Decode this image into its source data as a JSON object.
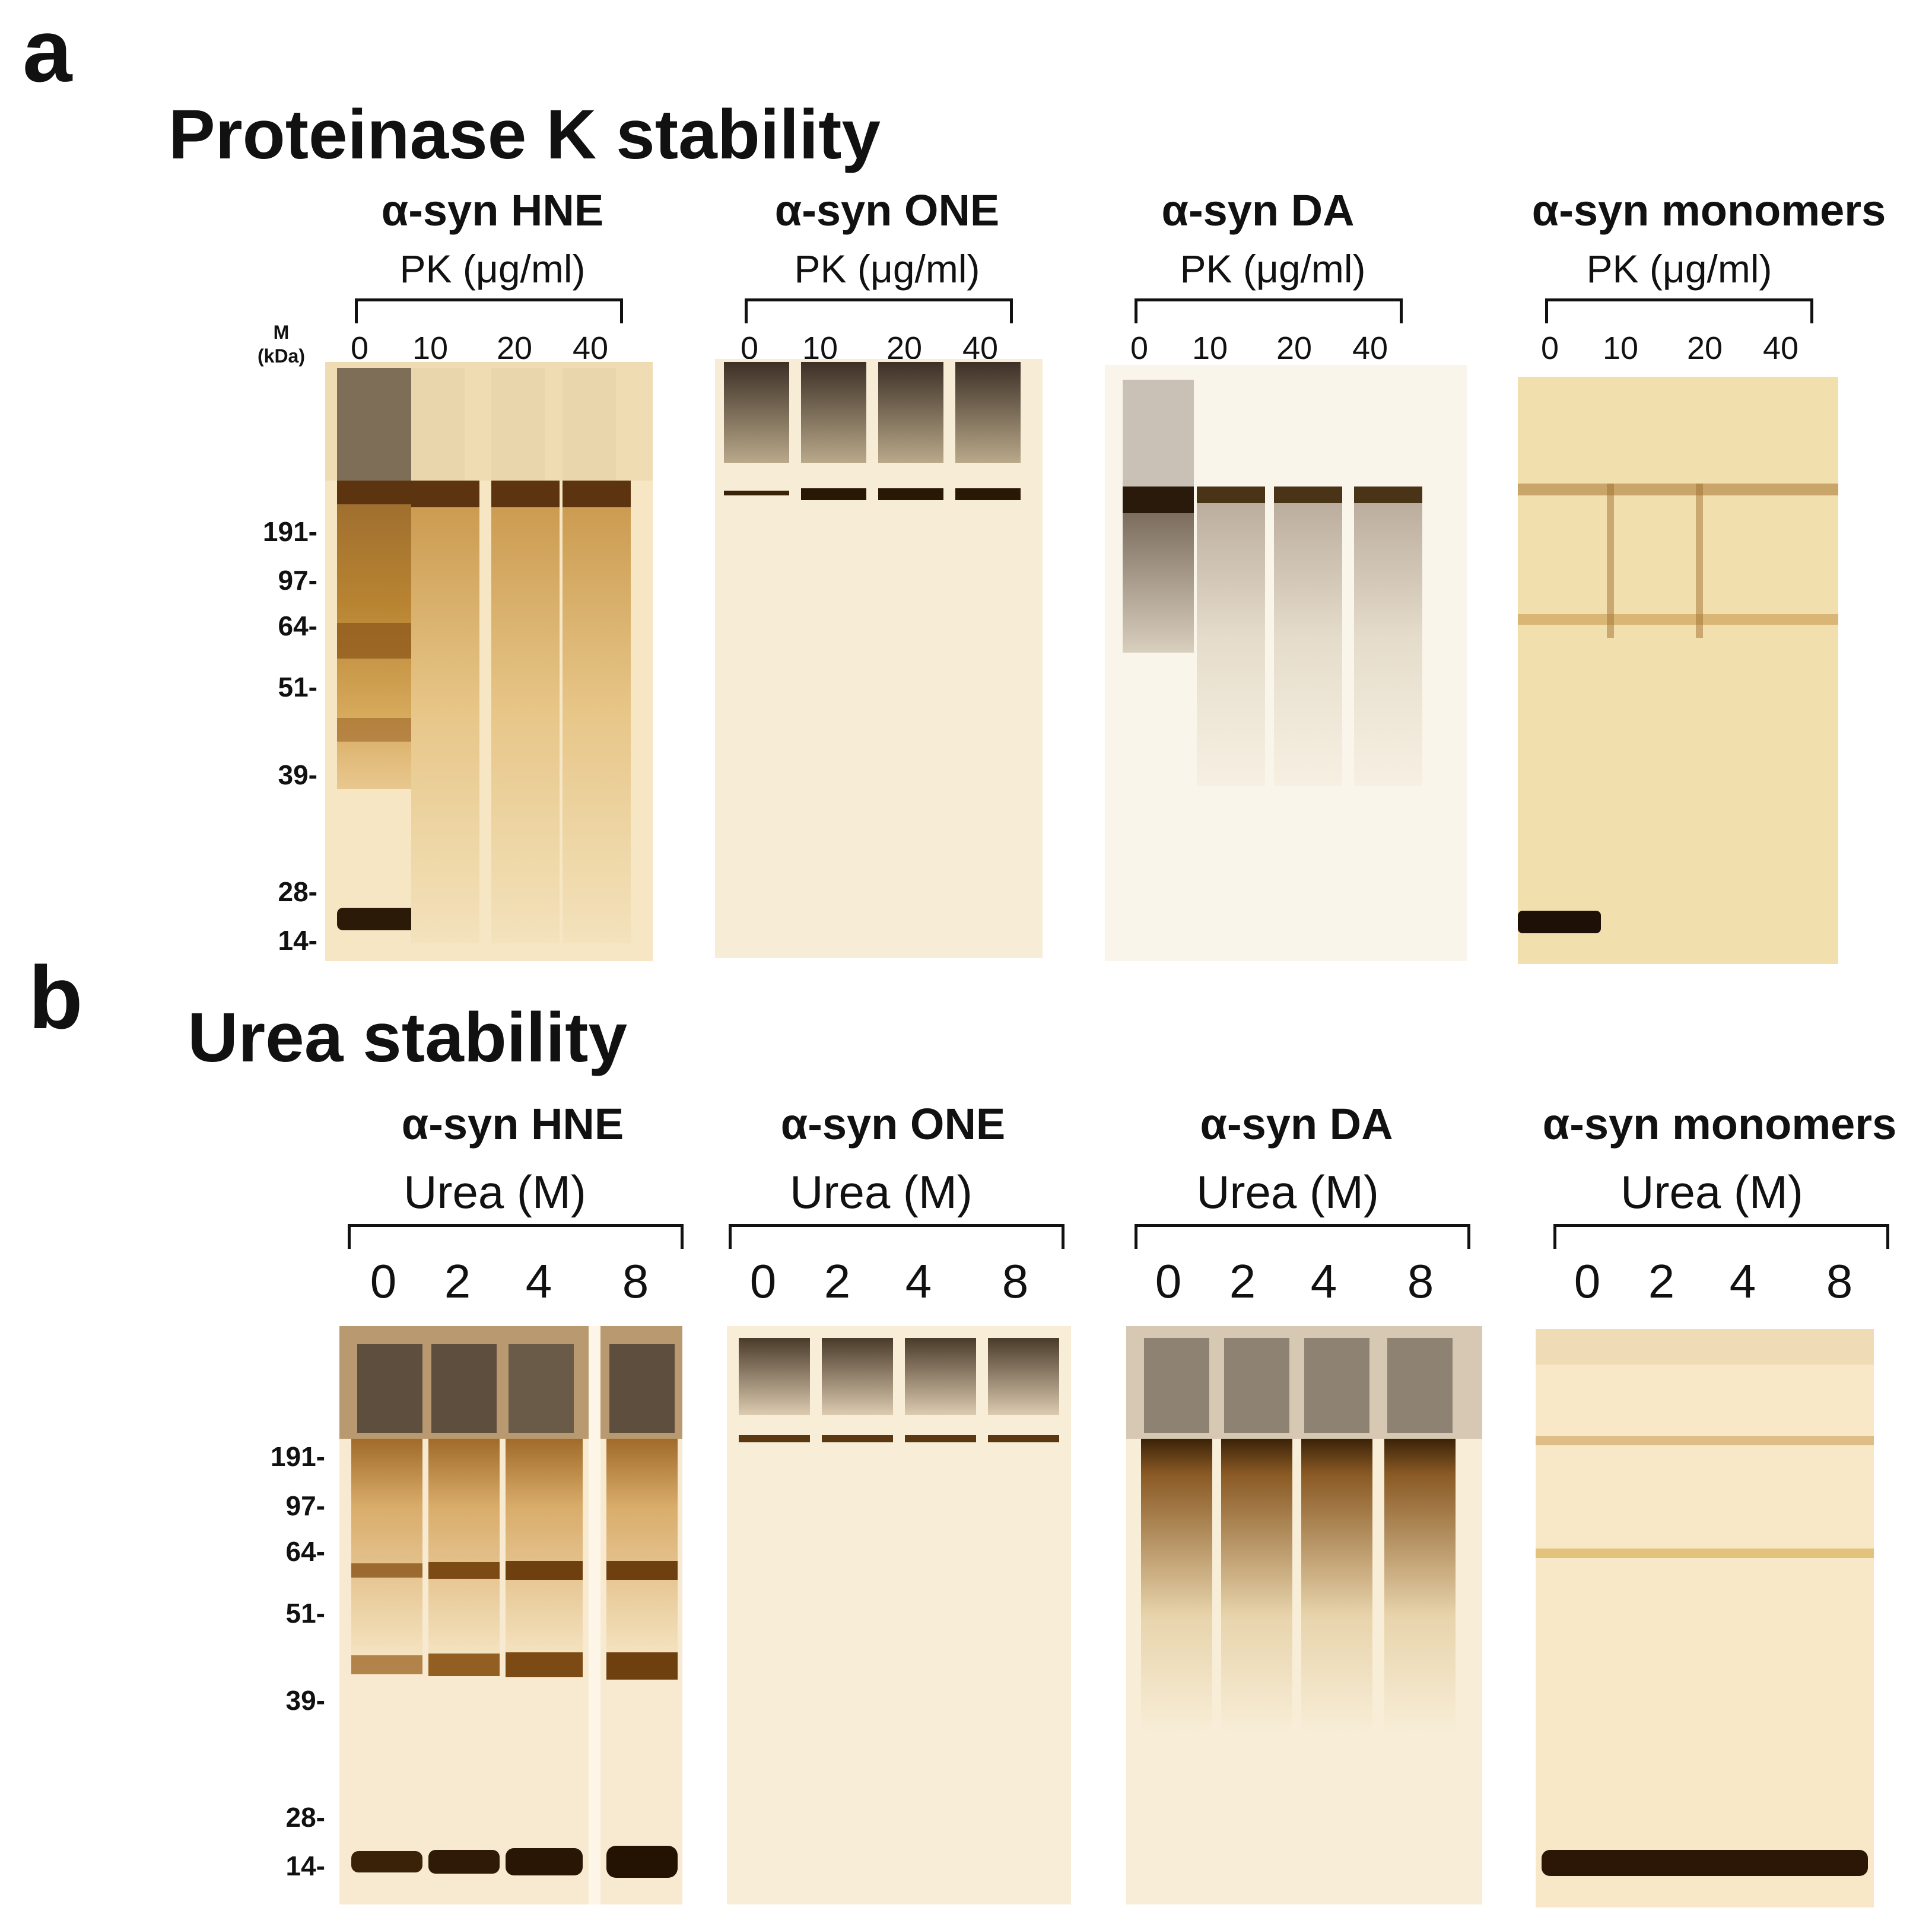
{
  "panel_a": {
    "letter": "a",
    "title": "Proteinase K stability",
    "marker_header": [
      "M",
      "(kDa)"
    ],
    "markers": [
      "191-",
      "97-",
      "64-",
      "51-",
      "39-",
      "28-",
      "14-"
    ],
    "gels": [
      {
        "name": "α-syn HNE",
        "treatment": "PK (μg/ml)",
        "lanes": [
          "0",
          "10",
          "20",
          "40"
        ]
      },
      {
        "name": "α-syn ONE",
        "treatment": "PK (μg/ml)",
        "lanes": [
          "0",
          "10",
          "20",
          "40"
        ]
      },
      {
        "name": "α-syn DA",
        "treatment": "PK (μg/ml)",
        "lanes": [
          "0",
          "10",
          "20",
          "40"
        ]
      },
      {
        "name": "α-syn monomers",
        "treatment": "PK (μg/ml)",
        "lanes": [
          "0",
          "10",
          "20",
          "40"
        ]
      }
    ]
  },
  "panel_b": {
    "letter": "b",
    "title": "Urea stability",
    "markers": [
      "191-",
      "97-",
      "64-",
      "51-",
      "39-",
      "28-",
      "14-"
    ],
    "gels": [
      {
        "name": "α-syn HNE",
        "treatment": "Urea (M)",
        "lanes": [
          "0",
          "2",
          "4",
          "8"
        ]
      },
      {
        "name": "α-syn ONE",
        "treatment": "Urea (M)",
        "lanes": [
          "0",
          "2",
          "4",
          "8"
        ]
      },
      {
        "name": "α-syn DA",
        "treatment": "Urea (M)",
        "lanes": [
          "0",
          "2",
          "4",
          "8"
        ]
      },
      {
        "name": "α-syn monomers",
        "treatment": "Urea (M)",
        "lanes": [
          "0",
          "2",
          "4",
          "8"
        ]
      }
    ]
  },
  "colors": {
    "gel_background": "#f8ecd0",
    "band_dark": "#3a2208",
    "band_brown": "#8a5418",
    "smear_amber": "#c99a4a"
  }
}
